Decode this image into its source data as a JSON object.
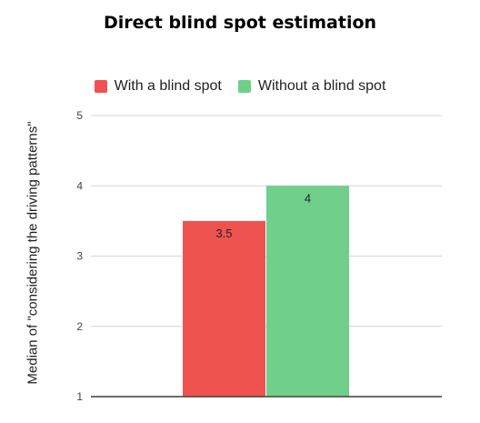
{
  "chart_data": {
    "type": "bar",
    "title": "Direct blind spot estimation",
    "xlabel": "",
    "ylabel": "Median of \"considering the driving patterns\"",
    "ylim": [
      1,
      5
    ],
    "yticks": [
      "1",
      "2",
      "3",
      "4",
      "5"
    ],
    "grid": true,
    "legend_position": "top",
    "series": [
      {
        "name": "With a blind spot",
        "values": [
          3.5
        ],
        "color": "#ef5350",
        "data_label": "3.5"
      },
      {
        "name": "Without a blind spot",
        "values": [
          4
        ],
        "color": "#6fcf8b",
        "data_label": "4"
      }
    ]
  }
}
